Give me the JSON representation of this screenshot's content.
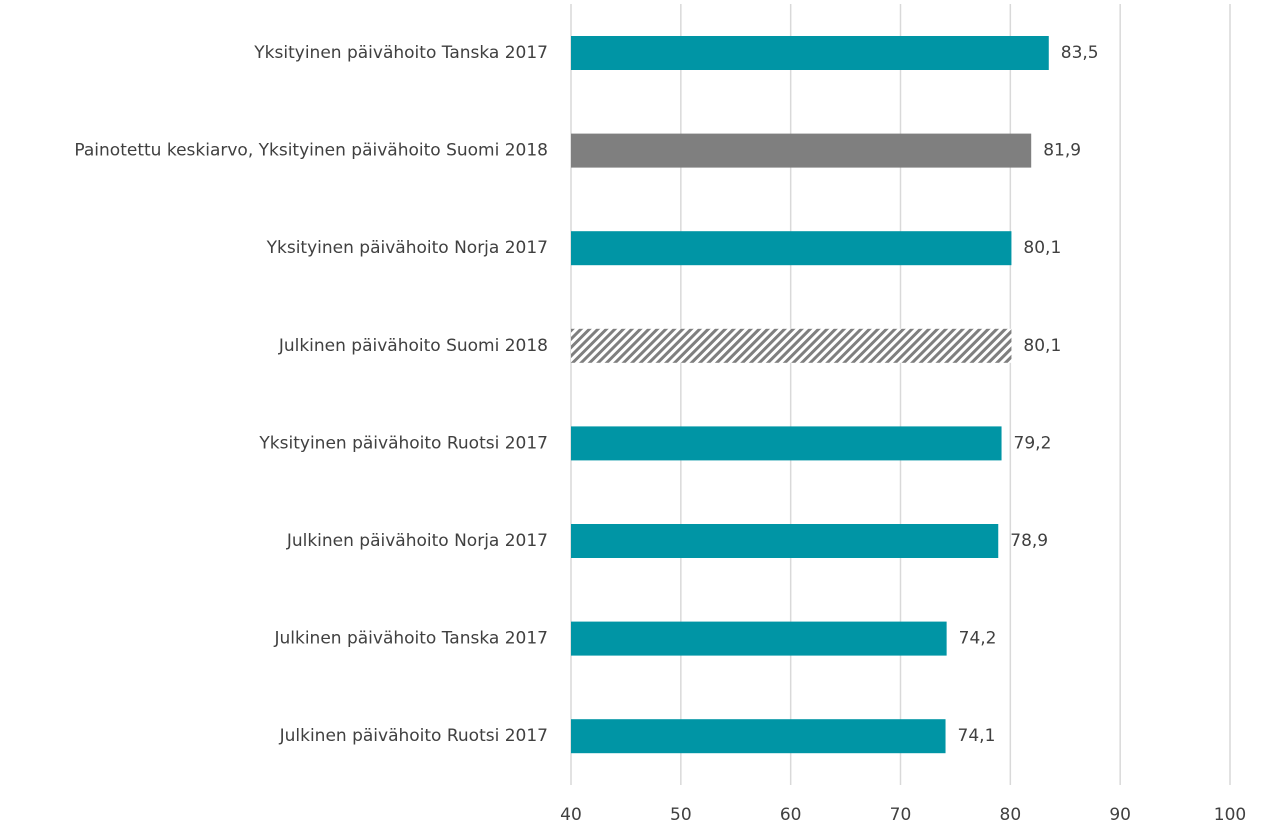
{
  "chart_data": {
    "type": "barh",
    "categories": [
      "Yksityinen päivähoito Tanska 2017",
      "Painotettu keskiarvo, Yksityinen päivähoito Suomi 2018",
      "Yksityinen päivähoito Norja 2017",
      "Julkinen päivähoito Suomi 2018",
      "Yksityinen päivähoito Ruotsi 2017",
      "Julkinen päivähoito Norja 2017",
      "Julkinen päivähoito Tanska 2017",
      "Julkinen päivähoito Ruotsi 2017"
    ],
    "values": [
      83.5,
      81.9,
      80.1,
      80.1,
      79.2,
      78.9,
      74.2,
      74.1
    ],
    "value_labels": [
      "83,5",
      "81,9",
      "80,1",
      "80,1",
      "79,2",
      "78,9",
      "74,2",
      "74,1"
    ],
    "colors": [
      "#0095a5",
      "#7f7f7f",
      "#0095a5",
      "#7f7f7f",
      "#0095a5",
      "#0095a5",
      "#0095a5",
      "#0095a5"
    ],
    "styles": [
      "solid",
      "solid",
      "solid",
      "hatched",
      "solid",
      "solid",
      "solid",
      "solid"
    ],
    "xlim": [
      40,
      100
    ],
    "xticks": [
      40,
      50,
      60,
      70,
      80,
      90,
      100
    ],
    "grid": true
  }
}
